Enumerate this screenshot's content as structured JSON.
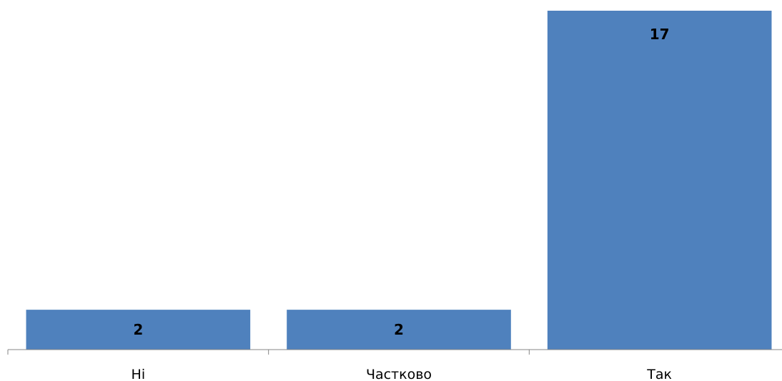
{
  "chart_data": {
    "type": "bar",
    "title": "",
    "xlabel": "",
    "ylabel": "",
    "categories": [
      "Ні",
      "Частково",
      "Так"
    ],
    "values": [
      2,
      2,
      17
    ],
    "data_labels": [
      "2",
      "2",
      "17"
    ],
    "ylim": [
      0,
      17
    ],
    "grid": false,
    "legend": "none",
    "bar_color": "#4F81BD"
  }
}
